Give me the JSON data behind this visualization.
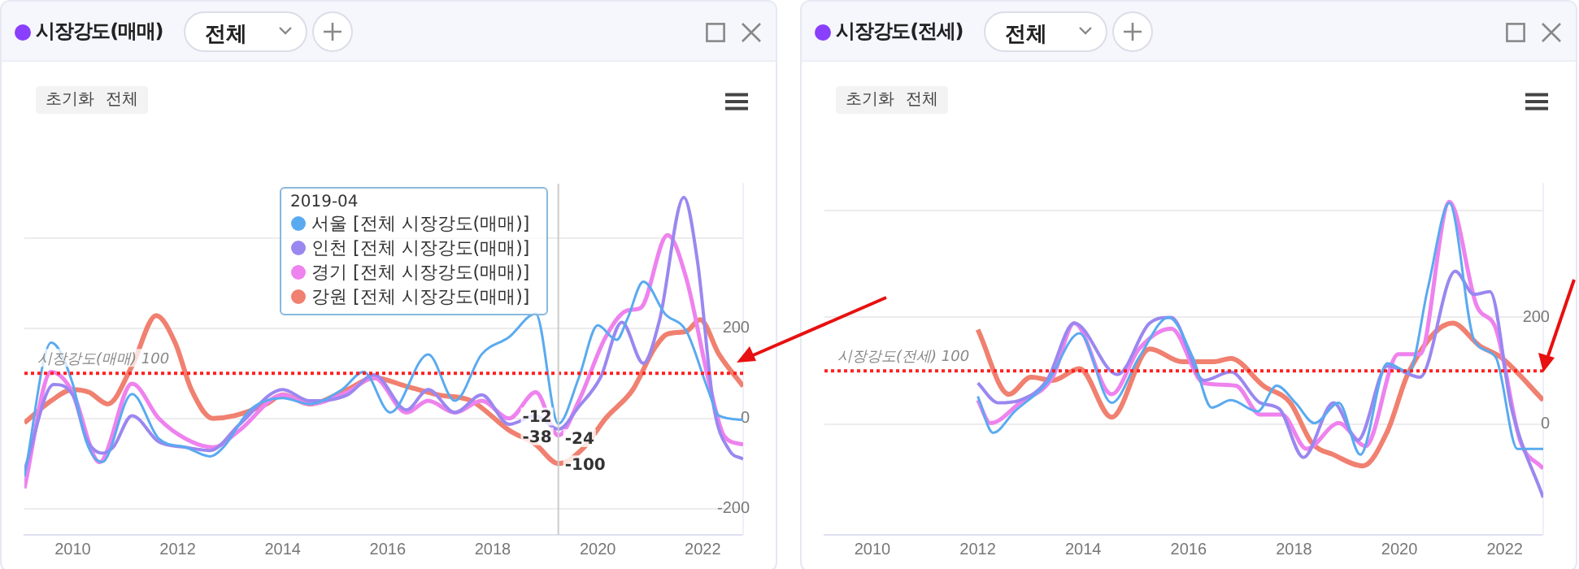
{
  "chart_data": [
    {
      "type": "line",
      "title": "시장강도(매매)",
      "annotations": [
        "전체",
        "초기화",
        "전체"
      ],
      "legend": "top",
      "legend_title": "2019-04",
      "grid": "y",
      "xlim": [
        2009.08,
        2022.77
      ],
      "xticks": [
        2010,
        2012,
        2014,
        2016,
        2018,
        2020,
        2022
      ],
      "ylim": [
        -258,
        520
      ],
      "yticks": [
        -200,
        0,
        200,
        {
          "value": 400,
          "label": null
        }
      ],
      "ref_lines": [
        {
          "axis": "y",
          "value": 100,
          "label": "시장강도(매매) 100",
          "color": "#ff2020",
          "line_style": "dotted"
        },
        {
          "axis": "x",
          "value": 2019.25,
          "color": "#cccccc"
        }
      ],
      "series": [
        {
          "name": "서울 [전체 시장강도(매매)]",
          "color": "#5aaaf0",
          "x": [
            2009.08,
            2009.59,
            2010,
            2010.26,
            2010.56,
            2011.13,
            2011.64,
            2012.15,
            2012.62,
            2012.87,
            2013.38,
            2014,
            2014.51,
            2015.13,
            2015.54,
            2016.05,
            2016.77,
            2017.28,
            2017.79,
            2018.31,
            2018.82,
            2019.25,
            2019.64,
            2020,
            2020.36,
            2020.56,
            2020.87,
            2021.28,
            2021.69,
            2022.1,
            2022.31,
            2022.77
          ],
          "values": [
            -129,
            168,
            77,
            -52,
            -97,
            54,
            -45,
            -64,
            -84,
            -64,
            19,
            45,
            32,
            64,
            103,
            13,
            142,
            39,
            142,
            180,
            232,
            -12,
            90,
            206,
            174,
            219,
            303,
            232,
            193,
            64,
            6,
            -3
          ],
          "value_labels": [
            null,
            null,
            null,
            null,
            null,
            null,
            null,
            null,
            null,
            null,
            null,
            null,
            null,
            null,
            null,
            null,
            null,
            null,
            null,
            null,
            null,
            "-12",
            null,
            null,
            null,
            null,
            null,
            null,
            null,
            null,
            null,
            null
          ]
        },
        {
          "name": "인천 [전체 시장강도(매매)]",
          "color": "#9b87f0",
          "x": [
            2009.08,
            2009.64,
            2010,
            2010.26,
            2010.56,
            2010.77,
            2011.13,
            2011.64,
            2012.15,
            2012.62,
            2013.18,
            2014,
            2014.51,
            2015.23,
            2015.74,
            2016.36,
            2016.77,
            2017.28,
            2017.79,
            2018.31,
            2018.82,
            2019.25,
            2019.64,
            2020.05,
            2020.46,
            2020.87,
            2021.18,
            2021.64,
            2021.9,
            2022.21,
            2022.51,
            2022.77
          ],
          "values": [
            -116,
            75,
            52,
            -45,
            -77,
            -64,
            6,
            -52,
            -64,
            -71,
            -13,
            64,
            39,
            52,
            97,
            19,
            64,
            13,
            52,
            -13,
            6,
            -24,
            26,
            90,
            213,
            122,
            219,
            490,
            348,
            26,
            -71,
            -90
          ],
          "value_labels": [
            null,
            null,
            null,
            null,
            null,
            null,
            null,
            null,
            null,
            null,
            null,
            null,
            null,
            null,
            null,
            null,
            null,
            null,
            null,
            null,
            null,
            "-24",
            null,
            null,
            null,
            null,
            null,
            null,
            null,
            null,
            null,
            null
          ]
        },
        {
          "name": "경기 [전체 시장강도(매매)]",
          "color": "#ee82ee",
          "x": [
            2009.08,
            2009.59,
            2010,
            2010.51,
            2011.13,
            2011.64,
            2012.15,
            2012.67,
            2013.18,
            2014,
            2014.51,
            2015.23,
            2015.74,
            2016.36,
            2016.77,
            2017.28,
            2017.79,
            2018.31,
            2018.82,
            2019.25,
            2019.64,
            2020.15,
            2020.56,
            2020.82,
            2021.33,
            2021.69,
            2022.1,
            2022.41,
            2022.77
          ],
          "values": [
            -155,
            103,
            58,
            -97,
            77,
            0,
            -45,
            -64,
            -26,
            52,
            32,
            58,
            90,
            13,
            39,
            13,
            39,
            0,
            58,
            -38,
            39,
            180,
            239,
            245,
            406,
            309,
            90,
            -39,
            -58
          ],
          "value_labels": [
            null,
            null,
            null,
            null,
            null,
            null,
            null,
            null,
            null,
            null,
            null,
            null,
            null,
            null,
            null,
            null,
            null,
            null,
            null,
            "-38",
            null,
            null,
            null,
            null,
            null,
            null,
            null,
            null,
            null
          ]
        },
        {
          "name": "강원 [전체 시장강도(매매)]",
          "color": "#f08070",
          "x": [
            2009.08,
            2009.59,
            2010,
            2010.31,
            2010.67,
            2011.13,
            2011.59,
            2011.95,
            2012.26,
            2012.67,
            2013.08,
            2013.69,
            2014,
            2014.51,
            2015.23,
            2015.74,
            2016.36,
            2016.97,
            2017.59,
            2018.31,
            2018.82,
            2019.25,
            2019.74,
            2020.15,
            2020.67,
            2021.08,
            2021.33,
            2021.69,
            2021.95,
            2022.31,
            2022.77
          ],
          "values": [
            -10,
            39,
            64,
            58,
            32,
            116,
            228,
            168,
            64,
            0,
            6,
            32,
            52,
            32,
            64,
            90,
            71,
            52,
            39,
            -26,
            -58,
            -100,
            -64,
            0,
            64,
            155,
            187,
            193,
            219,
            142,
            71
          ],
          "value_labels": [
            null,
            null,
            null,
            null,
            null,
            null,
            null,
            null,
            null,
            null,
            null,
            null,
            null,
            null,
            null,
            null,
            null,
            null,
            null,
            null,
            null,
            "-100",
            null,
            null,
            null,
            null,
            null,
            null,
            null,
            null,
            null
          ]
        }
      ]
    },
    {
      "type": "line",
      "title": "시장강도(전세)",
      "annotations": [
        "전체",
        "초기화",
        "전체"
      ],
      "grid": "y",
      "xlim": [
        2009.09,
        2022.73
      ],
      "xticks": [
        2010,
        2012,
        2014,
        2016,
        2018,
        2020,
        2022
      ],
      "ylim": [
        -207,
        450
      ],
      "yticks": [
        0,
        200,
        {
          "value": 400,
          "label": null
        }
      ],
      "ref_lines": [
        {
          "axis": "y",
          "value": 100,
          "label": "시장강도(전세) 100",
          "color": "#ff2020",
          "line_style": "dotted"
        }
      ],
      "series": [
        {
          "color": "#5aaaf0",
          "x": [
            2012,
            2012.29,
            2012.7,
            2013.31,
            2013.93,
            2014.54,
            2015.06,
            2015.62,
            2016.08,
            2016.44,
            2016.8,
            2017.31,
            2017.67,
            2018.03,
            2018.39,
            2018.85,
            2019.26,
            2019.77,
            2020.18,
            2020.54,
            2020.95,
            2021.42,
            2021.83,
            2022.24,
            2022.73
          ],
          "values": [
            52,
            -16,
            24,
            77,
            170,
            40,
            125,
            200,
            125,
            31,
            45,
            24,
            72,
            40,
            2,
            40,
            -57,
            114,
            98,
            254,
            414,
            157,
            125,
            -46,
            -46
          ]
        },
        {
          "color": "#9b87f0",
          "x": [
            2012,
            2012.39,
            2012.8,
            2013.31,
            2013.83,
            2014.65,
            2015.26,
            2015.67,
            2016.29,
            2016.8,
            2017.36,
            2017.72,
            2018.18,
            2018.75,
            2019.21,
            2019.77,
            2020.39,
            2021.06,
            2021.42,
            2021.72,
            2022.13,
            2022.73
          ],
          "values": [
            77,
            40,
            45,
            82,
            189,
            93,
            189,
            200,
            82,
            98,
            40,
            29,
            -62,
            40,
            -30,
            109,
            88,
            286,
            243,
            248,
            29,
            -137
          ]
        },
        {
          "color": "#ee82ee",
          "x": [
            2012,
            2012.24,
            2012.8,
            2013.42,
            2013.83,
            2014.54,
            2015.06,
            2015.67,
            2016.29,
            2016.9,
            2017.36,
            2017.77,
            2018.24,
            2018.85,
            2019.36,
            2019.98,
            2020.39,
            2020.95,
            2021.47,
            2021.83,
            2022.29,
            2022.73
          ],
          "values": [
            45,
            2,
            40,
            88,
            189,
            56,
            141,
            179,
            77,
            72,
            18,
            18,
            -46,
            2,
            -41,
            131,
            131,
            416,
            221,
            179,
            -30,
            -83
          ]
        },
        {
          "color": "#f08070",
          "x": [
            2012,
            2012.59,
            2013.01,
            2013.42,
            2013.93,
            2014.54,
            2015.26,
            2015.88,
            2016.49,
            2016.8,
            2017.42,
            2017.93,
            2018.34,
            2018.75,
            2019.31,
            2019.77,
            2020.18,
            2021.01,
            2021.52,
            2021.93,
            2022.73
          ],
          "values": [
            177,
            56,
            88,
            82,
            104,
            13,
            141,
            117,
            117,
            123,
            72,
            40,
            -35,
            -57,
            -78,
            -14,
            98,
            189,
            147,
            125,
            45
          ]
        }
      ]
    }
  ]
}
